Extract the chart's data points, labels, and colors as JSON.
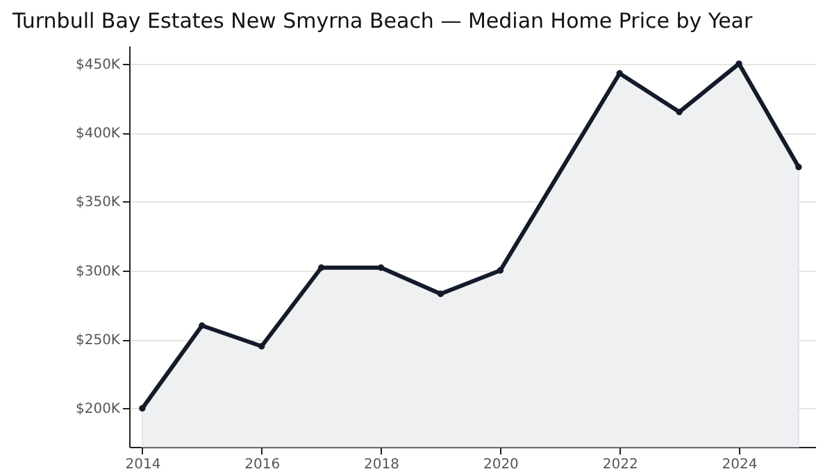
{
  "chart_data": {
    "type": "area",
    "title": "Turnbull Bay Estates New Smyrna Beach — Median Home Price by Year",
    "x": [
      2014,
      2015,
      2016,
      2017,
      2018,
      2019,
      2020,
      2022,
      2023,
      2024,
      2025
    ],
    "series": [
      {
        "color": "#131b2b",
        "values": [
          200,
          260,
          245,
          302,
          302,
          283,
          300,
          443,
          415,
          450,
          375
        ]
      }
    ],
    "xlim": [
      2013.78,
      2025.28
    ],
    "xticks": [
      2014,
      2016,
      2018,
      2020,
      2022,
      2024
    ],
    "ylim": [
      172,
      463
    ],
    "yticks": [
      {
        "value": 200,
        "label": "$200K"
      },
      {
        "value": 250,
        "label": "$250K"
      },
      {
        "value": 300,
        "label": "$300K"
      },
      {
        "value": 350,
        "label": "$350K"
      },
      {
        "value": 400,
        "label": "$400K"
      },
      {
        "value": 450,
        "label": "$450K"
      }
    ],
    "grid": "y",
    "marker": "circle",
    "line_style": "solid"
  }
}
